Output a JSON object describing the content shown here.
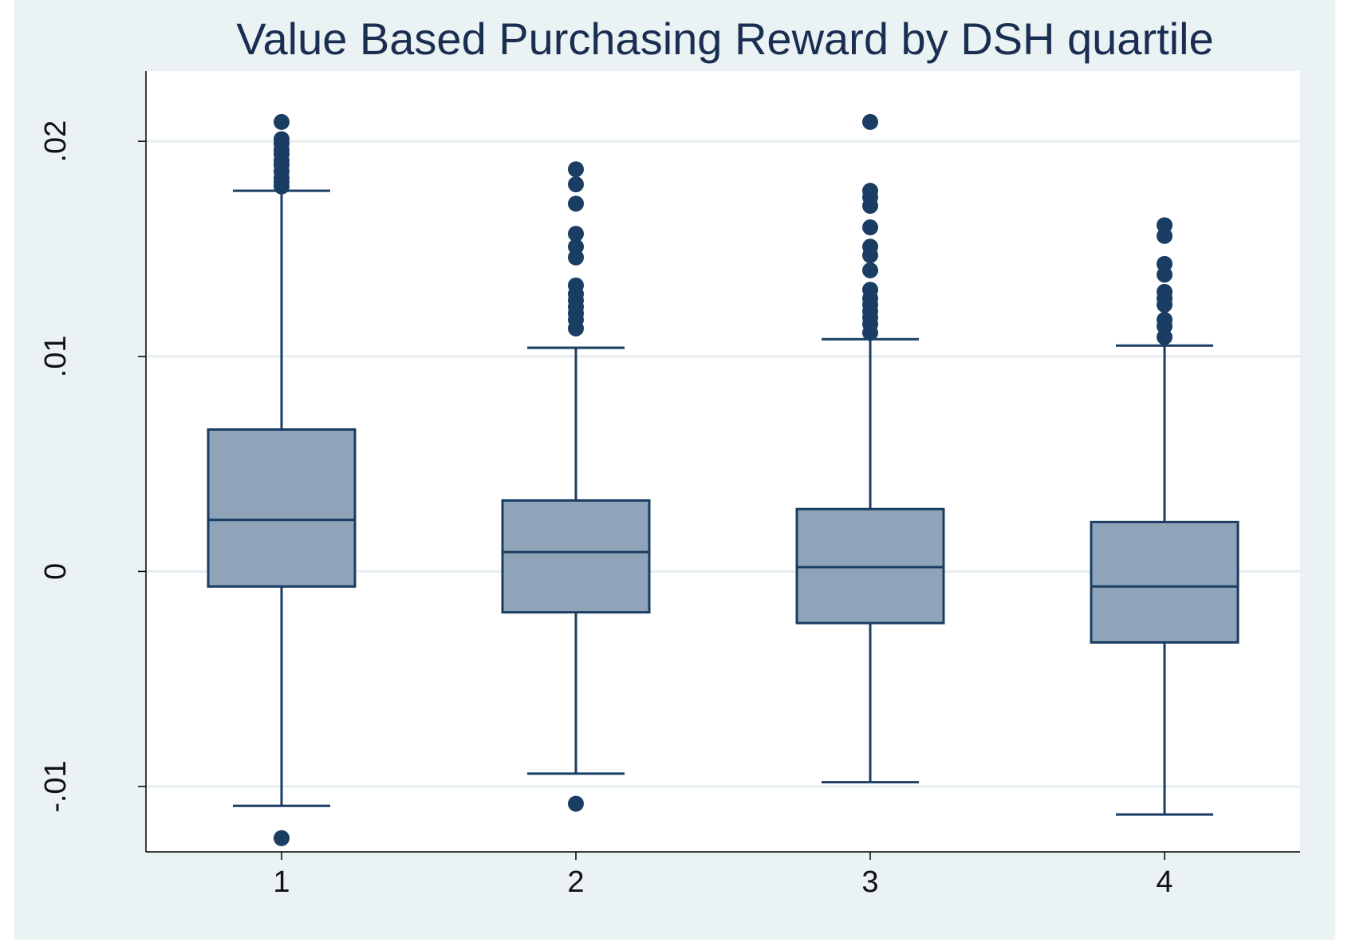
{
  "chart_data": {
    "type": "box",
    "title": "Value Based Purchasing Reward by DSH quartile",
    "xlabel": "",
    "ylabel": "",
    "categories": [
      "1",
      "2",
      "3",
      "4"
    ],
    "ylim": [
      -0.01304,
      0.02327
    ],
    "yticks": [
      -0.01,
      0,
      0.01,
      0.02
    ],
    "ytick_labels": [
      "-.01",
      "0",
      ".01",
      ".02"
    ],
    "grid": true,
    "boxes": [
      {
        "category": "1",
        "whisker_low": -0.0109,
        "q1": -0.0007,
        "median": 0.0024,
        "q3": 0.0066,
        "whisker_high": 0.0177,
        "outliers": [
          0.0209,
          0.0201,
          0.0199,
          0.0196,
          0.0194,
          0.0191,
          0.0189,
          0.0186,
          0.0183,
          0.0181,
          0.0179,
          -0.0124
        ]
      },
      {
        "category": "2",
        "whisker_low": -0.0094,
        "q1": -0.0019,
        "median": 0.0009,
        "q3": 0.0033,
        "whisker_high": 0.0104,
        "outliers": [
          0.0187,
          0.018,
          0.0171,
          0.0157,
          0.0151,
          0.0146,
          0.0133,
          0.0129,
          0.0126,
          0.0123,
          0.012,
          0.0117,
          0.0113,
          -0.0108
        ]
      },
      {
        "category": "3",
        "whisker_low": -0.0098,
        "q1": -0.0024,
        "median": 0.0002,
        "q3": 0.0029,
        "whisker_high": 0.0108,
        "outliers": [
          0.0209,
          0.0177,
          0.0174,
          0.017,
          0.016,
          0.0151,
          0.0147,
          0.014,
          0.0131,
          0.0127,
          0.0124,
          0.0121,
          0.0118,
          0.0115,
          0.0111
        ]
      },
      {
        "category": "4",
        "whisker_low": -0.0113,
        "q1": -0.0033,
        "median": -0.0007,
        "q3": 0.0023,
        "whisker_high": 0.0105,
        "outliers": [
          0.0161,
          0.0156,
          0.0143,
          0.0138,
          0.013,
          0.0127,
          0.0124,
          0.0117,
          0.0114,
          0.0109
        ]
      }
    ],
    "colors": {
      "background": "#eaf2f3",
      "plot_background": "#ffffff",
      "box_fill": "#90a4b9",
      "line": "#1a3d63",
      "marker": "#1a3d63",
      "grid": "#e6eef0",
      "title": "#1a2e52"
    }
  }
}
